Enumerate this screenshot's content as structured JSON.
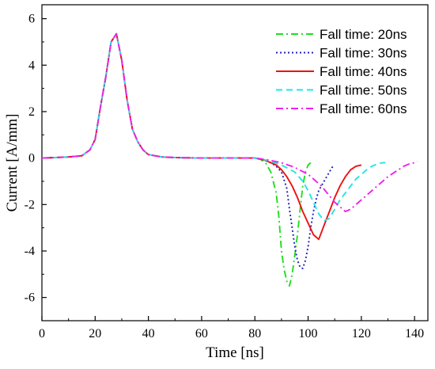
{
  "chart_data": {
    "type": "line",
    "xlabel": "Time [ns]",
    "ylabel": "Current [A/mm]",
    "xlim": [
      0,
      145
    ],
    "ylim": [
      -7,
      6.6
    ],
    "xticks": [
      0,
      20,
      40,
      60,
      80,
      100,
      120,
      140
    ],
    "yticks": [
      -6,
      -4,
      -2,
      0,
      2,
      4,
      6
    ],
    "grid": false,
    "legend_position": "top-right",
    "series": [
      {
        "name": "Fall time: 20ns",
        "color": "#22dd22",
        "dash": "dashdot",
        "x": [
          0,
          5,
          10,
          15,
          18,
          20,
          22,
          24,
          26,
          28,
          30,
          32,
          34,
          36,
          38,
          40,
          45,
          50,
          55,
          60,
          65,
          70,
          75,
          80,
          82,
          84,
          86,
          88,
          89,
          90,
          91,
          92,
          93,
          94,
          95,
          96,
          97,
          98,
          99,
          100,
          101
        ],
        "y": [
          0,
          0.02,
          0.05,
          0.1,
          0.35,
          0.8,
          2.2,
          3.5,
          5.0,
          5.35,
          4.2,
          2.5,
          1.25,
          0.7,
          0.35,
          0.15,
          0.05,
          0.02,
          0.01,
          0,
          0,
          0,
          0,
          0,
          -0.05,
          -0.2,
          -0.6,
          -1.5,
          -2.5,
          -4.0,
          -4.8,
          -5.3,
          -5.5,
          -5.0,
          -4.2,
          -3.3,
          -2.2,
          -1.2,
          -0.6,
          -0.3,
          -0.2
        ]
      },
      {
        "name": "Fall time: 30ns",
        "color": "#2222bb",
        "dash": "dot",
        "x": [
          0,
          5,
          10,
          15,
          18,
          20,
          22,
          24,
          26,
          28,
          30,
          32,
          34,
          36,
          38,
          40,
          45,
          50,
          55,
          60,
          65,
          70,
          75,
          80,
          82,
          84,
          86,
          88,
          90,
          92,
          93,
          94,
          95,
          96,
          97,
          98,
          99,
          100,
          101,
          102,
          103,
          104,
          105,
          106,
          107,
          108,
          109,
          110
        ],
        "y": [
          0,
          0.02,
          0.05,
          0.1,
          0.35,
          0.8,
          2.2,
          3.5,
          5.0,
          5.35,
          4.2,
          2.5,
          1.25,
          0.7,
          0.35,
          0.15,
          0.05,
          0.02,
          0.01,
          0,
          0,
          0,
          0,
          0,
          -0.03,
          -0.1,
          -0.2,
          -0.35,
          -0.6,
          -1.3,
          -2.2,
          -3.0,
          -3.8,
          -4.4,
          -4.7,
          -4.75,
          -4.4,
          -3.8,
          -3.0,
          -2.3,
          -1.8,
          -1.4,
          -1.2,
          -1.0,
          -0.8,
          -0.6,
          -0.4,
          -0.35
        ]
      },
      {
        "name": "Fall time: 40ns",
        "color": "#ee1111",
        "dash": "solid",
        "x": [
          0,
          5,
          10,
          15,
          18,
          20,
          22,
          24,
          26,
          28,
          30,
          32,
          34,
          36,
          38,
          40,
          45,
          50,
          55,
          60,
          65,
          70,
          75,
          80,
          84,
          88,
          90,
          92,
          94,
          96,
          98,
          100,
          102,
          104,
          106,
          108,
          110,
          112,
          114,
          116,
          118,
          120
        ],
        "y": [
          0,
          0.02,
          0.05,
          0.1,
          0.35,
          0.8,
          2.2,
          3.5,
          5.0,
          5.35,
          4.2,
          2.5,
          1.25,
          0.7,
          0.35,
          0.15,
          0.05,
          0.02,
          0.01,
          0,
          0,
          0,
          0,
          0,
          -0.1,
          -0.3,
          -0.5,
          -0.8,
          -1.2,
          -1.7,
          -2.3,
          -2.8,
          -3.3,
          -3.5,
          -2.9,
          -2.3,
          -1.7,
          -1.2,
          -0.8,
          -0.5,
          -0.35,
          -0.3
        ]
      },
      {
        "name": "Fall time: 50ns",
        "color": "#22e5e5",
        "dash": "dash",
        "x": [
          0,
          5,
          10,
          15,
          18,
          20,
          22,
          24,
          26,
          28,
          30,
          32,
          34,
          36,
          38,
          40,
          45,
          50,
          55,
          60,
          65,
          70,
          75,
          80,
          85,
          90,
          95,
          98,
          100,
          102,
          104,
          106,
          108,
          110,
          112,
          114,
          116,
          118,
          120,
          122,
          124,
          126,
          128,
          129
        ],
        "y": [
          0,
          0.02,
          0.05,
          0.1,
          0.35,
          0.8,
          2.2,
          3.5,
          5.0,
          5.35,
          4.2,
          2.5,
          1.25,
          0.7,
          0.35,
          0.15,
          0.05,
          0.02,
          0.01,
          0,
          0,
          0,
          0,
          0,
          -0.1,
          -0.3,
          -0.6,
          -1.0,
          -1.4,
          -1.9,
          -2.4,
          -2.7,
          -2.6,
          -2.2,
          -1.8,
          -1.5,
          -1.2,
          -0.9,
          -0.7,
          -0.5,
          -0.35,
          -0.25,
          -0.2,
          -0.2
        ]
      },
      {
        "name": "Fall time: 60ns",
        "color": "#ee22ee",
        "dash": "dashdot",
        "x": [
          0,
          5,
          10,
          15,
          18,
          20,
          22,
          24,
          26,
          28,
          30,
          32,
          34,
          36,
          38,
          40,
          45,
          50,
          55,
          60,
          65,
          70,
          75,
          80,
          85,
          90,
          95,
          100,
          105,
          110,
          112,
          114,
          116,
          118,
          120,
          122,
          124,
          126,
          128,
          130,
          132,
          134,
          136,
          138,
          140,
          141
        ],
        "y": [
          0,
          0.02,
          0.05,
          0.1,
          0.35,
          0.8,
          2.2,
          3.5,
          5.0,
          5.35,
          4.2,
          2.5,
          1.25,
          0.7,
          0.35,
          0.15,
          0.05,
          0.02,
          0.01,
          0,
          0,
          0,
          0,
          0,
          -0.08,
          -0.2,
          -0.4,
          -0.7,
          -1.2,
          -1.9,
          -2.1,
          -2.3,
          -2.2,
          -2.0,
          -1.8,
          -1.6,
          -1.4,
          -1.2,
          -1.0,
          -0.8,
          -0.65,
          -0.5,
          -0.35,
          -0.25,
          -0.2,
          -0.15
        ]
      }
    ]
  }
}
